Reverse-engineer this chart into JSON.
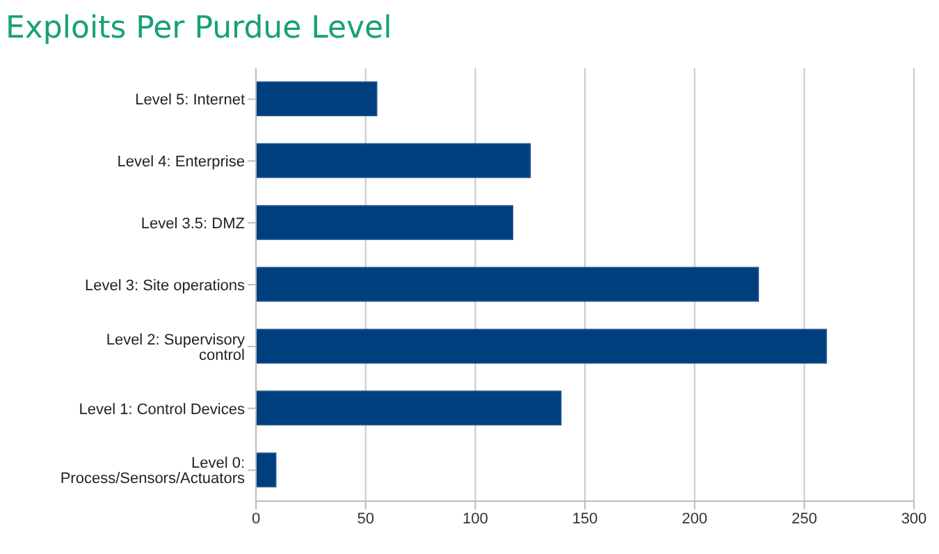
{
  "chart_data": {
    "type": "bar",
    "orientation": "horizontal",
    "title": "Exploits Per Purdue Level",
    "categories": [
      "Level 5: Internet",
      "Level 4: Enterprise",
      "Level 3.5: DMZ",
      "Level 3: Site operations",
      "Level 2: Supervisory control",
      "Level 1: Control Devices",
      "Level 0: Process/Sensors/Actuators"
    ],
    "values": [
      55,
      125,
      117,
      229,
      260,
      139,
      9
    ],
    "color": "#003f7d",
    "xlim": [
      0,
      300
    ],
    "xticks": [
      0,
      50,
      100,
      150,
      200,
      250,
      300
    ],
    "grid": "x"
  }
}
